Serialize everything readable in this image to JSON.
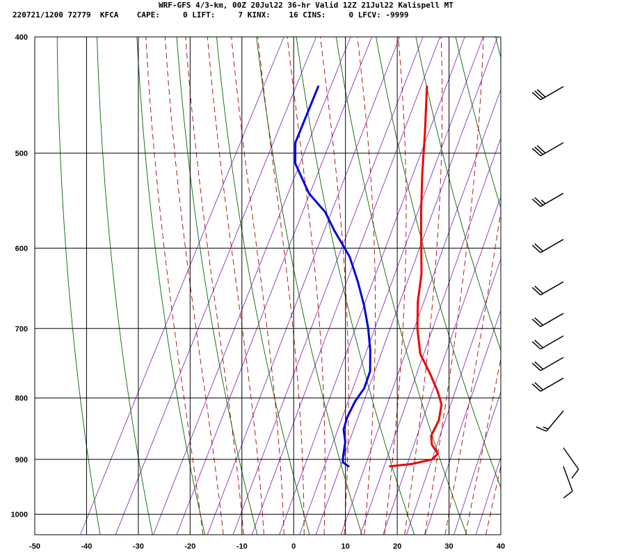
{
  "header": {
    "title": "WRF-GFS 4/3-km, 00Z 20Jul22 36-hr Valid 12Z 21Jul22 Kalispell MT",
    "subtitle": "220721/1200 72779  KFCA    CAPE:     0 LIFT:     7 KINX:    16 CINS:     0 LFCV: -9999"
  },
  "colors": {
    "temperature": "#ee0000",
    "dewpoint": "#0000dd",
    "isotherm": "#000000",
    "dry_adiabat": "#006600",
    "moist_adiabat": "#aa0000",
    "mixing_ratio": "#8833bb",
    "barb": "#000000"
  },
  "chart_data": {
    "type": "line",
    "diagram": "skew-T log-P",
    "xlim": [
      -50,
      40
    ],
    "ylim": [
      1040,
      400
    ],
    "y_scale": "log",
    "x_ticks": [
      "-50",
      "-40",
      "-30",
      "-20",
      "-10",
      "0",
      "10",
      "20",
      "30",
      "40"
    ],
    "x_tick_values": [
      -50,
      -40,
      -30,
      -20,
      -10,
      0,
      10,
      20,
      30,
      40
    ],
    "y_ticks": [
      "400",
      "500",
      "600",
      "700",
      "800",
      "900",
      "1000"
    ],
    "y_tick_values": [
      400,
      500,
      600,
      700,
      800,
      900,
      1000
    ],
    "grid": true,
    "series": [
      {
        "key": "temperature",
        "points": [
          {
            "p": 912,
            "t": 12.0
          },
          {
            "p": 908,
            "t": 16.0
          },
          {
            "p": 900,
            "t": 19.5
          },
          {
            "p": 890,
            "t": 20.0
          },
          {
            "p": 875,
            "t": 18.0
          },
          {
            "p": 860,
            "t": 17.0
          },
          {
            "p": 835,
            "t": 17.0
          },
          {
            "p": 810,
            "t": 16.0
          },
          {
            "p": 790,
            "t": 14.0
          },
          {
            "p": 765,
            "t": 11.0
          },
          {
            "p": 735,
            "t": 7.0
          },
          {
            "p": 700,
            "t": 4.0
          },
          {
            "p": 665,
            "t": 1.5
          },
          {
            "p": 630,
            "t": -0.5
          },
          {
            "p": 600,
            "t": -3.0
          },
          {
            "p": 560,
            "t": -6.5
          },
          {
            "p": 520,
            "t": -10.0
          },
          {
            "p": 480,
            "t": -13.5
          },
          {
            "p": 440,
            "t": -17.5
          }
        ]
      },
      {
        "key": "dewpoint",
        "points": [
          {
            "p": 912,
            "t": 4.0
          },
          {
            "p": 905,
            "t": 2.5
          },
          {
            "p": 895,
            "t": 2.0
          },
          {
            "p": 870,
            "t": 1.0
          },
          {
            "p": 850,
            "t": -0.5
          },
          {
            "p": 830,
            "t": -1.0
          },
          {
            "p": 805,
            "t": -1.0
          },
          {
            "p": 785,
            "t": -0.5
          },
          {
            "p": 760,
            "t": -1.0
          },
          {
            "p": 730,
            "t": -3.0
          },
          {
            "p": 700,
            "t": -5.5
          },
          {
            "p": 670,
            "t": -8.5
          },
          {
            "p": 640,
            "t": -12.0
          },
          {
            "p": 610,
            "t": -16.0
          },
          {
            "p": 580,
            "t": -21.5
          },
          {
            "p": 560,
            "t": -25.0
          },
          {
            "p": 540,
            "t": -30.0
          },
          {
            "p": 510,
            "t": -35.5
          },
          {
            "p": 490,
            "t": -37.5
          },
          {
            "p": 440,
            "t": -38.5
          }
        ]
      }
    ],
    "winds_kt": [
      {
        "p": 440,
        "dir": 240,
        "spd": 30
      },
      {
        "p": 490,
        "dir": 240,
        "spd": 30
      },
      {
        "p": 540,
        "dir": 240,
        "spd": 25
      },
      {
        "p": 590,
        "dir": 240,
        "spd": 20
      },
      {
        "p": 640,
        "dir": 240,
        "spd": 20
      },
      {
        "p": 680,
        "dir": 240,
        "spd": 20
      },
      {
        "p": 710,
        "dir": 240,
        "spd": 20
      },
      {
        "p": 740,
        "dir": 240,
        "spd": 20
      },
      {
        "p": 770,
        "dir": 240,
        "spd": 20
      },
      {
        "p": 820,
        "dir": 220,
        "spd": 15
      },
      {
        "p": 880,
        "dir": 145,
        "spd": 10
      },
      {
        "p": 912,
        "dir": 160,
        "spd": 10
      }
    ]
  }
}
